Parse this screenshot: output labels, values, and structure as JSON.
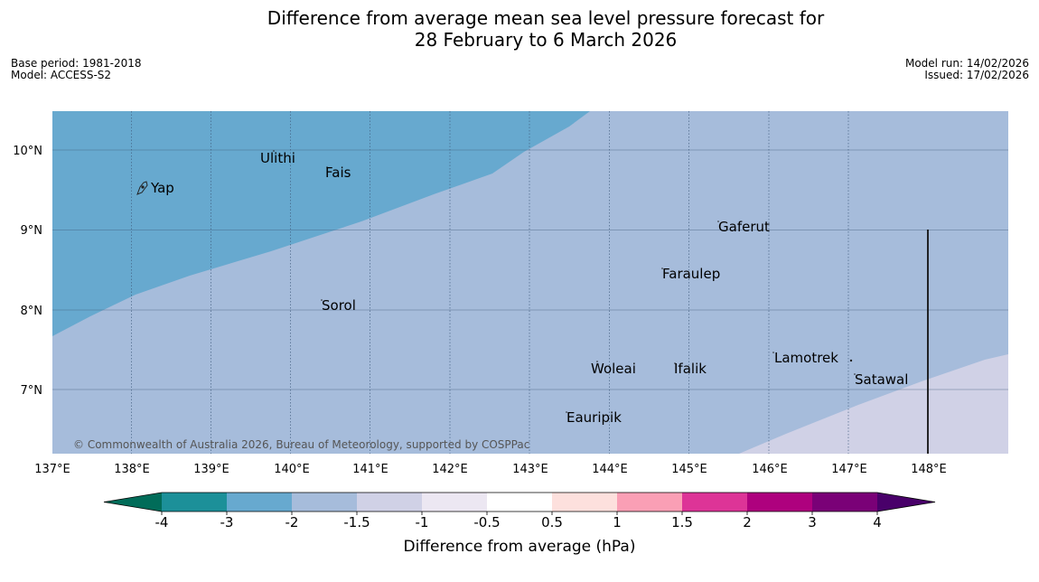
{
  "title": {
    "line1": "Difference from average mean sea level pressure forecast for",
    "line2": "28 February to 6 March 2026"
  },
  "meta_left": {
    "base_period": "Base period: 1981-2018",
    "model": "Model: ACCESS-S2"
  },
  "meta_right": {
    "model_run": "Model run: 14/02/2026",
    "issued": "Issued: 17/02/2026"
  },
  "map": {
    "lat_labels": [
      "10°N",
      "9°N",
      "8°N",
      "7°N"
    ],
    "lon_labels": [
      "137°E",
      "138°E",
      "139°E",
      "140°E",
      "141°E",
      "142°E",
      "143°E",
      "144°E",
      "145°E",
      "146°E",
      "147°E",
      "148°E"
    ],
    "places": [
      "Yap",
      "Ulithi",
      "Fais",
      "Gaferut",
      "Faraulep",
      "Sorol",
      "Lamotrek",
      "Woleai",
      "Ifalik",
      "Satawal",
      "Eauripik"
    ],
    "copyright": "© Commonwealth of Australia 2026, Bureau of Meteorology, supported by COSPPac",
    "colors": {
      "band_-3_-2": "#67a9cf",
      "band_-2_-1.5": "#a6bcdb",
      "band_-1.5_-1": "#d0d1e6"
    }
  },
  "colorbar": {
    "title": "Difference from average (hPa)",
    "ticks": [
      "-4",
      "-3",
      "-2",
      "-1.5",
      "-1",
      "-0.5",
      "0.5",
      "1",
      "1.5",
      "2",
      "3",
      "4"
    ],
    "colors": [
      "#016c59",
      "#1c9099",
      "#67a9cf",
      "#a6bcdb",
      "#d0d1e6",
      "#ece7f2",
      "#ffffff",
      "#fde0dd",
      "#fa9fb5",
      "#dd3497",
      "#ae017e",
      "#7a0177",
      "#49006a"
    ]
  }
}
